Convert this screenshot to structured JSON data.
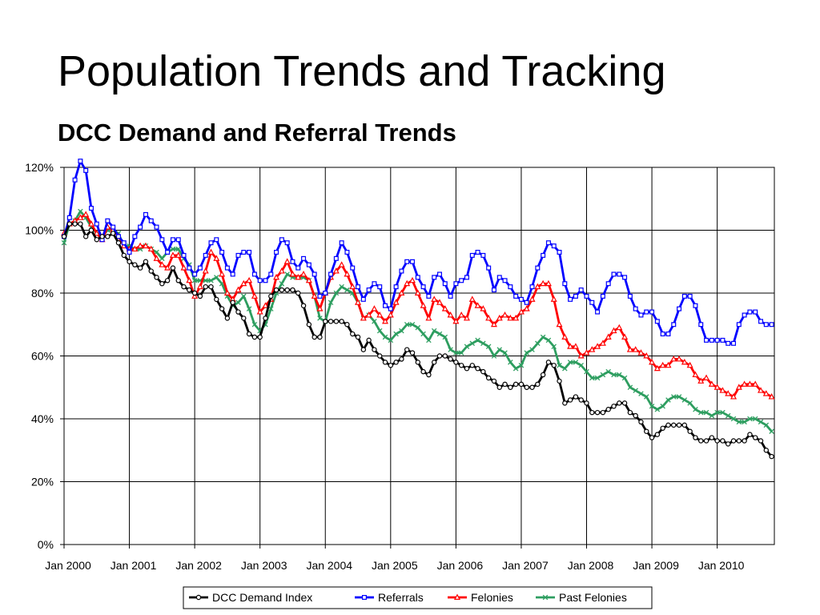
{
  "slide": {
    "title": "Population Trends and Tracking",
    "subtitle": "DCC Demand and Referral Trends"
  },
  "chart_data": {
    "type": "line",
    "title": "DCC Demand and Referral Trends",
    "xlabel": "",
    "ylabel": "",
    "x_start": "Jan 2000",
    "x_frequency": "monthly",
    "x_ticks": [
      "Jan 2000",
      "Jan 2001",
      "Jan 2002",
      "Jan 2003",
      "Jan 2004",
      "Jan 2005",
      "Jan 2006",
      "Jan 2007",
      "Jan 2008",
      "Jan 2009",
      "Jan 2010"
    ],
    "y_ticks": [
      "0%",
      "20%",
      "40%",
      "60%",
      "80%",
      "100%",
      "120%"
    ],
    "ylim": [
      0,
      120
    ],
    "y_unit": "%",
    "grid": true,
    "legend_position": "bottom",
    "series": [
      {
        "name": "DCC Demand Index",
        "color": "#000000",
        "marker": "circle",
        "values": [
          98,
          102,
          102,
          102,
          98,
          100,
          97,
          98,
          98,
          99,
          96,
          92,
          90,
          89,
          88,
          90,
          87,
          85,
          83,
          84,
          88,
          84,
          82,
          81,
          80,
          79,
          82,
          82,
          78,
          75,
          72,
          77,
          74,
          72,
          67,
          66,
          66,
          72,
          79,
          81,
          81,
          81,
          81,
          80,
          76,
          70,
          66,
          66,
          71,
          71,
          71,
          71,
          70,
          67,
          66,
          62,
          65,
          62,
          60,
          58,
          57,
          58,
          59,
          62,
          61,
          58,
          55,
          54,
          58,
          60,
          60,
          59,
          58,
          57,
          56,
          57,
          56,
          55,
          53,
          52,
          50,
          51,
          50,
          51,
          51,
          50,
          50,
          51,
          54,
          58,
          57,
          52,
          45,
          46,
          47,
          46,
          45,
          42,
          42,
          42,
          43,
          44,
          45,
          45,
          42,
          41,
          39,
          36,
          34,
          35,
          37,
          38,
          38,
          38,
          38,
          36,
          34,
          33,
          33,
          34,
          33,
          33,
          32,
          33,
          33,
          33,
          35,
          34,
          33,
          30,
          28
        ]
      },
      {
        "name": "Referrals",
        "color": "#0000ff",
        "marker": "square",
        "values": [
          98,
          104,
          116,
          122,
          119,
          107,
          102,
          97,
          103,
          101,
          98,
          96,
          93,
          98,
          101,
          105,
          103,
          101,
          97,
          93,
          97,
          97,
          92,
          88,
          86,
          88,
          92,
          96,
          97,
          93,
          88,
          86,
          92,
          93,
          93,
          86,
          84,
          84,
          86,
          93,
          97,
          96,
          90,
          88,
          91,
          89,
          86,
          79,
          80,
          86,
          91,
          96,
          93,
          88,
          82,
          78,
          81,
          83,
          82,
          76,
          75,
          82,
          87,
          90,
          90,
          85,
          82,
          79,
          85,
          86,
          83,
          79,
          83,
          84,
          85,
          92,
          93,
          92,
          88,
          81,
          85,
          84,
          82,
          79,
          78,
          77,
          82,
          88,
          92,
          96,
          95,
          93,
          83,
          78,
          79,
          81,
          79,
          77,
          74,
          79,
          83,
          86,
          86,
          85,
          79,
          75,
          73,
          74,
          74,
          71,
          67,
          67,
          70,
          75,
          79,
          79,
          76,
          70,
          65,
          65,
          65,
          65,
          64,
          64,
          70,
          73,
          74,
          74,
          71,
          70,
          70
        ]
      },
      {
        "name": "Felonies",
        "color": "#ff0000",
        "marker": "triangle",
        "values": [
          99,
          102,
          103,
          104,
          105,
          102,
          99,
          97,
          101,
          100,
          98,
          95,
          94,
          94,
          95,
          95,
          94,
          91,
          89,
          88,
          92,
          92,
          88,
          84,
          79,
          82,
          87,
          93,
          91,
          86,
          80,
          78,
          81,
          83,
          84,
          79,
          74,
          76,
          78,
          85,
          87,
          90,
          86,
          85,
          86,
          84,
          79,
          75,
          80,
          85,
          87,
          89,
          86,
          82,
          77,
          72,
          73,
          75,
          73,
          71,
          73,
          77,
          80,
          83,
          84,
          80,
          76,
          72,
          78,
          77,
          75,
          73,
          71,
          73,
          72,
          78,
          76,
          75,
          72,
          70,
          72,
          73,
          72,
          72,
          74,
          75,
          78,
          82,
          83,
          83,
          78,
          70,
          66,
          63,
          63,
          60,
          61,
          62,
          63,
          64,
          66,
          68,
          69,
          66,
          62,
          62,
          61,
          60,
          58,
          56,
          57,
          57,
          59,
          59,
          58,
          57,
          54,
          52,
          53,
          51,
          50,
          49,
          48,
          47,
          50,
          51,
          51,
          51,
          49,
          48,
          47
        ]
      },
      {
        "name": "Past Felonies",
        "color": "#2e9e60",
        "marker": "x",
        "values": [
          96,
          102,
          103,
          106,
          104,
          101,
          99,
          98,
          100,
          100,
          99,
          95,
          95,
          94,
          94,
          95,
          94,
          93,
          91,
          93,
          94,
          94,
          91,
          89,
          84,
          84,
          84,
          84,
          85,
          83,
          79,
          76,
          77,
          79,
          75,
          70,
          68,
          70,
          75,
          80,
          83,
          86,
          85,
          85,
          85,
          84,
          79,
          72,
          71,
          77,
          80,
          82,
          81,
          80,
          77,
          72,
          73,
          71,
          68,
          66,
          65,
          67,
          68,
          70,
          70,
          69,
          67,
          65,
          68,
          67,
          66,
          62,
          61,
          61,
          63,
          64,
          65,
          64,
          63,
          60,
          62,
          61,
          58,
          56,
          57,
          61,
          62,
          64,
          66,
          65,
          63,
          57,
          56,
          58,
          58,
          57,
          55,
          53,
          53,
          54,
          55,
          54,
          54,
          53,
          50,
          49,
          48,
          47,
          44,
          43,
          44,
          46,
          47,
          47,
          46,
          45,
          43,
          42,
          42,
          41,
          42,
          42,
          41,
          40,
          39,
          39,
          40,
          40,
          39,
          38,
          36
        ]
      }
    ]
  }
}
